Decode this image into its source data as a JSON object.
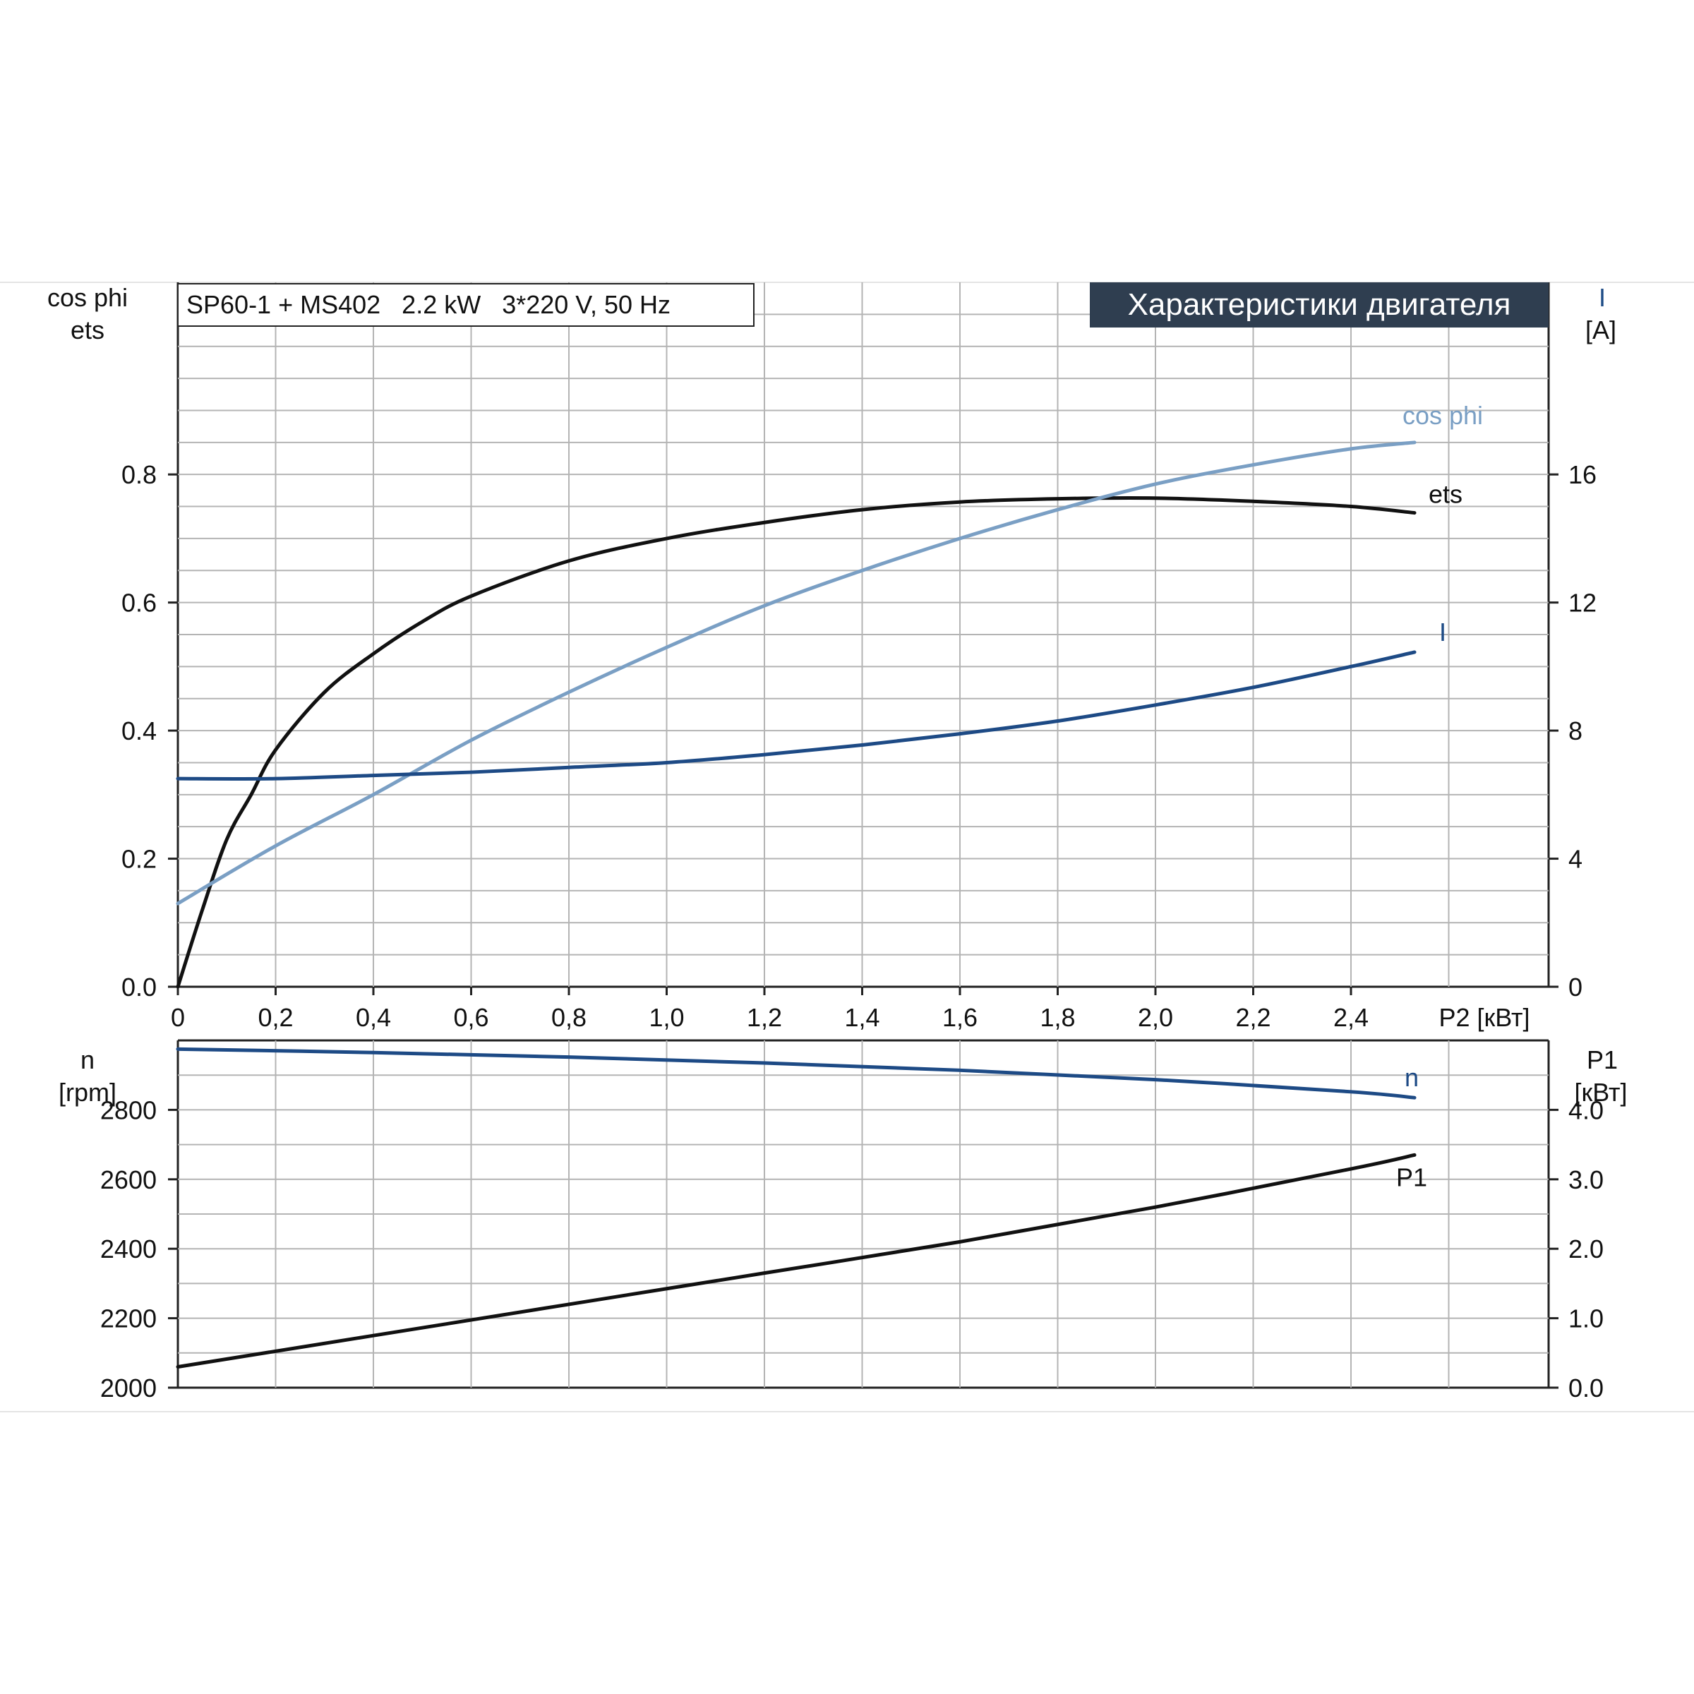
{
  "header": {
    "model_label": "SP60-1 + MS402   2.2 kW   3*220 V, 50 Hz",
    "title": "Характеристики двигателя"
  },
  "colors": {
    "ets": "#111111",
    "cos_phi": "#7a9fc4",
    "current": "#1d4a85",
    "speed": "#1d4a85",
    "p1": "#111111",
    "grid": "#b4b4b4",
    "title_bg": "#2f3e50"
  },
  "chart_data": [
    {
      "type": "line",
      "title": "Характеристики двигателя",
      "xlabel": "P2 [кВт]",
      "x_ticks": [
        "0",
        "0,2",
        "0,4",
        "0,6",
        "0,8",
        "1,0",
        "1,2",
        "1,4",
        "1,6",
        "1,8",
        "2,0",
        "2,2",
        "2,4"
      ],
      "xlim": [
        0,
        2.8
      ],
      "y_left_label": [
        "cos phi",
        "ets"
      ],
      "y_left_ticks": [
        "0.0",
        "0.2",
        "0.4",
        "0.6",
        "0.8"
      ],
      "y_left_lim": [
        0,
        1.1
      ],
      "y_right_label": [
        "I",
        "[A]"
      ],
      "y_right_ticks": [
        "0",
        "4",
        "8",
        "12",
        "16"
      ],
      "y_right_lim": [
        0,
        22
      ],
      "grid": true,
      "series": [
        {
          "name": "ets",
          "axis": "left",
          "color": "#111111",
          "x": [
            0,
            0.05,
            0.1,
            0.15,
            0.2,
            0.3,
            0.4,
            0.5,
            0.6,
            0.8,
            1.0,
            1.2,
            1.4,
            1.6,
            1.8,
            2.0,
            2.2,
            2.4,
            2.53
          ],
          "y": [
            0,
            0.12,
            0.23,
            0.3,
            0.37,
            0.46,
            0.52,
            0.57,
            0.61,
            0.665,
            0.7,
            0.725,
            0.745,
            0.757,
            0.762,
            0.763,
            0.758,
            0.75,
            0.74
          ]
        },
        {
          "name": "cos phi",
          "axis": "left",
          "color": "#7a9fc4",
          "x": [
            0,
            0.2,
            0.4,
            0.6,
            0.8,
            1.0,
            1.2,
            1.4,
            1.6,
            1.8,
            2.0,
            2.2,
            2.4,
            2.53
          ],
          "y": [
            0.13,
            0.22,
            0.3,
            0.385,
            0.46,
            0.53,
            0.595,
            0.65,
            0.7,
            0.745,
            0.785,
            0.815,
            0.84,
            0.85
          ]
        },
        {
          "name": "I",
          "axis": "right",
          "color": "#1d4a85",
          "x": [
            0,
            0.2,
            0.4,
            0.6,
            0.8,
            1.0,
            1.2,
            1.4,
            1.6,
            1.8,
            2.0,
            2.2,
            2.4,
            2.53
          ],
          "y": [
            6.5,
            6.5,
            6.6,
            6.7,
            6.85,
            7.0,
            7.25,
            7.55,
            7.9,
            8.3,
            8.8,
            9.35,
            10.0,
            10.45
          ]
        }
      ]
    },
    {
      "type": "line",
      "xlim": [
        0,
        2.8
      ],
      "y_left_label": [
        "n",
        "[rpm]"
      ],
      "y_left_ticks": [
        "2000",
        "2200",
        "2400",
        "2600",
        "2800"
      ],
      "y_left_lim": [
        2000,
        3000
      ],
      "y_right_label": [
        "P1",
        "[кВт]"
      ],
      "y_right_ticks": [
        "0.0",
        "1.0",
        "2.0",
        "3.0",
        "4.0"
      ],
      "y_right_lim": [
        0,
        5.0
      ],
      "grid": true,
      "series": [
        {
          "name": "n",
          "axis": "left",
          "color": "#1d4a85",
          "x": [
            0,
            0.4,
            0.8,
            1.2,
            1.6,
            2.0,
            2.4,
            2.53
          ],
          "y": [
            2975,
            2965,
            2952,
            2935,
            2914,
            2887,
            2852,
            2835
          ]
        },
        {
          "name": "P1",
          "axis": "right",
          "color": "#111111",
          "x": [
            0,
            0.4,
            0.8,
            1.2,
            1.6,
            2.0,
            2.4,
            2.53
          ],
          "y": [
            0.3,
            0.75,
            1.2,
            1.65,
            2.1,
            2.6,
            3.15,
            3.35
          ]
        }
      ]
    }
  ]
}
